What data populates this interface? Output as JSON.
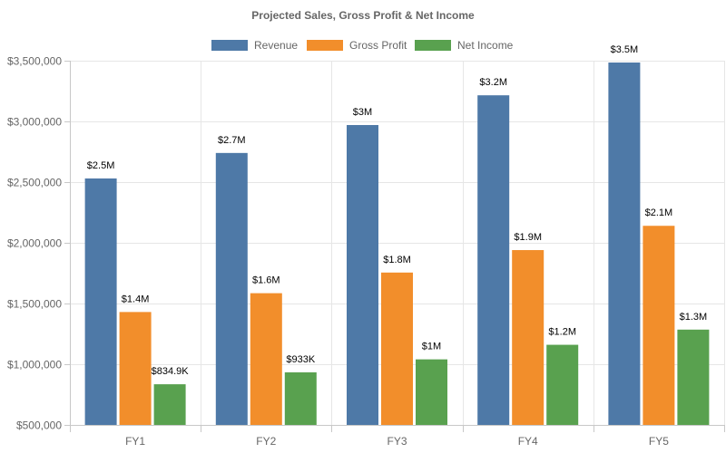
{
  "chart_data": {
    "type": "bar",
    "title": "Projected Sales, Gross Profit & Net Income",
    "categories": [
      "FY1",
      "FY2",
      "FY3",
      "FY4",
      "FY5"
    ],
    "series": [
      {
        "name": "Revenue",
        "color": "#4e79a7",
        "values": [
          2530000,
          2740000,
          2970000,
          3215000,
          3485000
        ],
        "labels": [
          "$2.5M",
          "$2.7M",
          "$3M",
          "$3.2M",
          "$3.5M"
        ]
      },
      {
        "name": "Gross Profit",
        "color": "#f28e2b",
        "values": [
          1430000,
          1585000,
          1755000,
          1940000,
          2140000
        ],
        "labels": [
          "$1.4M",
          "$1.6M",
          "$1.8M",
          "$1.9M",
          "$2.1M"
        ]
      },
      {
        "name": "Net Income",
        "color": "#59a14f",
        "values": [
          834900,
          933000,
          1040000,
          1160000,
          1285000
        ],
        "labels": [
          "$834.9K",
          "$933K",
          "$1M",
          "$1.2M",
          "$1.3M"
        ]
      }
    ],
    "xlabel": "",
    "ylabel": "",
    "ylim": [
      500000,
      3500000
    ],
    "yticks": [
      500000,
      1000000,
      1500000,
      2000000,
      2500000,
      3000000,
      3500000
    ],
    "ytick_labels": [
      "$500,000",
      "$1,000,000",
      "$1,500,000",
      "$2,000,000",
      "$2,500,000",
      "$3,000,000",
      "$3,500,000"
    ],
    "legend_position": "top-center",
    "grid": true
  }
}
